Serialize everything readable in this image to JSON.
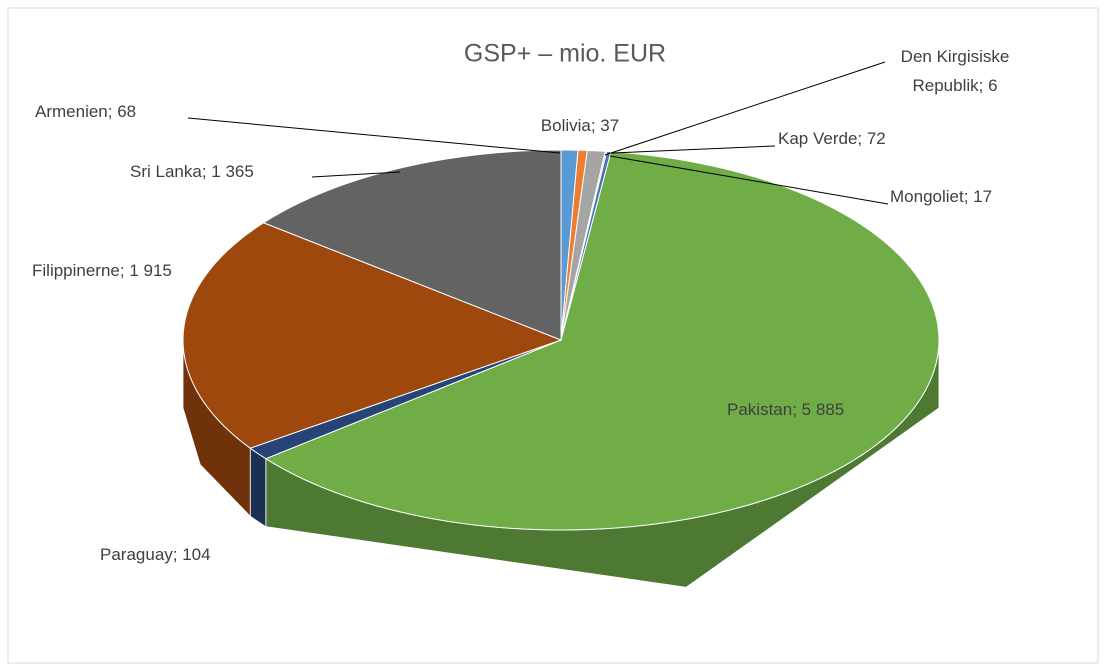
{
  "chart_data": {
    "type": "pie",
    "title": "GSP+ – mio. EUR",
    "labels": [
      "Armenien; 68",
      "Bolivia; 37",
      "Kap Verde; 72",
      "Den Kirgisiske\nRepublik; 6",
      "Mongoliet; 17",
      "Pakistan; 5 885",
      "Paraguay; 104",
      "Filippinerne; 1 915",
      "Sri Lanka; 1 365"
    ],
    "values": [
      68,
      37,
      72,
      6,
      17,
      5885,
      104,
      1915,
      1365
    ],
    "colors": [
      "#5b9bd5",
      "#ed7d31",
      "#a5a5a5",
      "#ffc000",
      "#4472c4",
      "#70ad47",
      "#264478",
      "#9e480e",
      "#636363"
    ]
  }
}
